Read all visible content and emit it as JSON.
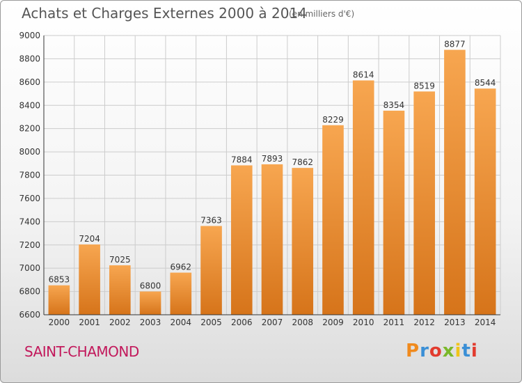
{
  "header": {
    "title": "Achats et Charges Externes 2000 à 2014",
    "subtitle": "(en milliers d'€)"
  },
  "footer": {
    "city": "SAINT-CHAMOND",
    "brand": "Proxiti",
    "brand_colors": [
      "#f08a1d",
      "#3a8fd6",
      "#e23b2e",
      "#7ab829",
      "#f0c419",
      "#3a8fd6",
      "#e23b2e"
    ]
  },
  "colors": {
    "bar_top": "#f7a650",
    "bar_bottom": "#d6741a",
    "grid": "#cccccc",
    "axis": "#333333",
    "text": "#333333"
  },
  "chart_data": {
    "type": "bar",
    "title": "Achats et Charges Externes 2000 à 2014",
    "xlabel": "",
    "ylabel": "",
    "categories": [
      "2000",
      "2001",
      "2002",
      "2003",
      "2004",
      "2005",
      "2006",
      "2007",
      "2008",
      "2009",
      "2010",
      "2011",
      "2012",
      "2013",
      "2014"
    ],
    "values": [
      6853,
      7204,
      7025,
      6800,
      6962,
      7363,
      7884,
      7893,
      7862,
      8229,
      8614,
      8354,
      8519,
      8877,
      8544
    ],
    "ylim": [
      6600,
      9000
    ],
    "yticks": [
      6600,
      6800,
      7000,
      7200,
      7400,
      7600,
      7800,
      8000,
      8200,
      8400,
      8600,
      8800,
      9000
    ],
    "grid": true
  }
}
